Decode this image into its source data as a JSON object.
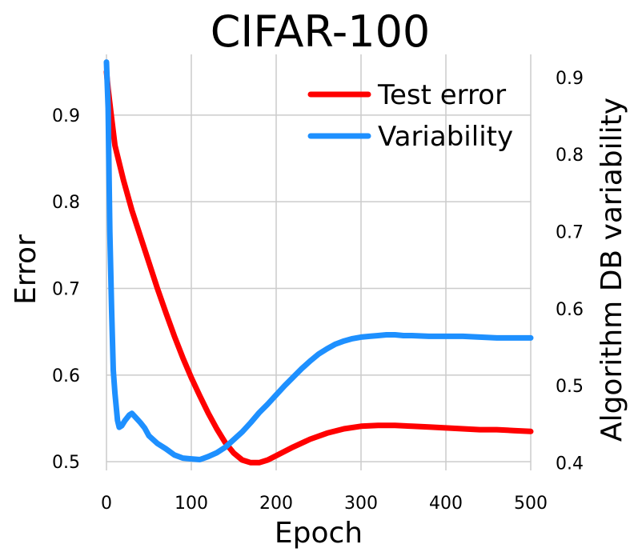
{
  "chart_data": {
    "type": "line",
    "title": "CIFAR-100",
    "xlabel": "Epoch",
    "ylabel": "Error",
    "y2label": "Algorithm DB variability",
    "xlim": [
      0,
      500
    ],
    "ylim": [
      0.49,
      0.97
    ],
    "y2lim": [
      0.39,
      0.93
    ],
    "xticks": [
      0,
      100,
      200,
      300,
      400,
      500
    ],
    "yticks": [
      0.5,
      0.6,
      0.7,
      0.8,
      0.9
    ],
    "y2ticks": [
      0.4,
      0.5,
      0.6,
      0.7,
      0.8,
      0.9
    ],
    "grid": true,
    "legend_position": "top-right",
    "series": [
      {
        "name": "Test error",
        "axis": "left",
        "color": "#ff0000",
        "points": [
          [
            0,
            0.95
          ],
          [
            2,
            0.93
          ],
          [
            5,
            0.905
          ],
          [
            10,
            0.865
          ],
          [
            20,
            0.825
          ],
          [
            30,
            0.79
          ],
          [
            40,
            0.76
          ],
          [
            50,
            0.73
          ],
          [
            60,
            0.7
          ],
          [
            70,
            0.672
          ],
          [
            80,
            0.645
          ],
          [
            90,
            0.62
          ],
          [
            100,
            0.597
          ],
          [
            110,
            0.576
          ],
          [
            120,
            0.556
          ],
          [
            130,
            0.538
          ],
          [
            140,
            0.522
          ],
          [
            150,
            0.51
          ],
          [
            160,
            0.502
          ],
          [
            170,
            0.499
          ],
          [
            180,
            0.499
          ],
          [
            190,
            0.502
          ],
          [
            200,
            0.507
          ],
          [
            220,
            0.517
          ],
          [
            240,
            0.526
          ],
          [
            260,
            0.533
          ],
          [
            280,
            0.538
          ],
          [
            300,
            0.541
          ],
          [
            320,
            0.542
          ],
          [
            340,
            0.542
          ],
          [
            360,
            0.541
          ],
          [
            380,
            0.54
          ],
          [
            400,
            0.539
          ],
          [
            420,
            0.538
          ],
          [
            440,
            0.537
          ],
          [
            460,
            0.537
          ],
          [
            480,
            0.536
          ],
          [
            500,
            0.535
          ]
        ]
      },
      {
        "name": "Variability",
        "axis": "right",
        "color": "#1e90ff",
        "points": [
          [
            0,
            0.92
          ],
          [
            2,
            0.86
          ],
          [
            4,
            0.7
          ],
          [
            6,
            0.6
          ],
          [
            8,
            0.52
          ],
          [
            10,
            0.49
          ],
          [
            13,
            0.455
          ],
          [
            15,
            0.446
          ],
          [
            18,
            0.448
          ],
          [
            22,
            0.455
          ],
          [
            27,
            0.462
          ],
          [
            30,
            0.464
          ],
          [
            35,
            0.458
          ],
          [
            40,
            0.452
          ],
          [
            45,
            0.445
          ],
          [
            50,
            0.435
          ],
          [
            60,
            0.425
          ],
          [
            70,
            0.418
          ],
          [
            80,
            0.41
          ],
          [
            90,
            0.406
          ],
          [
            100,
            0.405
          ],
          [
            110,
            0.404
          ],
          [
            120,
            0.408
          ],
          [
            130,
            0.413
          ],
          [
            140,
            0.42
          ],
          [
            150,
            0.43
          ],
          [
            160,
            0.44
          ],
          [
            170,
            0.452
          ],
          [
            180,
            0.465
          ],
          [
            190,
            0.476
          ],
          [
            200,
            0.488
          ],
          [
            210,
            0.5
          ],
          [
            220,
            0.511
          ],
          [
            230,
            0.522
          ],
          [
            240,
            0.532
          ],
          [
            250,
            0.541
          ],
          [
            260,
            0.548
          ],
          [
            270,
            0.554
          ],
          [
            280,
            0.558
          ],
          [
            290,
            0.561
          ],
          [
            300,
            0.563
          ],
          [
            310,
            0.564
          ],
          [
            320,
            0.565
          ],
          [
            330,
            0.566
          ],
          [
            340,
            0.566
          ],
          [
            350,
            0.565
          ],
          [
            360,
            0.565
          ],
          [
            380,
            0.564
          ],
          [
            400,
            0.564
          ],
          [
            420,
            0.564
          ],
          [
            440,
            0.563
          ],
          [
            460,
            0.562
          ],
          [
            480,
            0.562
          ],
          [
            500,
            0.562
          ]
        ]
      }
    ]
  }
}
